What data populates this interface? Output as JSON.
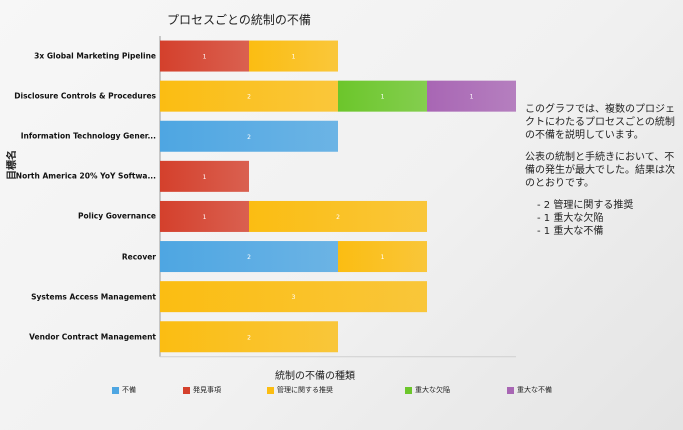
{
  "chart_data": {
    "type": "bar",
    "orientation": "horizontal",
    "stacked": true,
    "title": "プロセスごとの統制の不備",
    "xlabel": "統制の不備の種類",
    "ylabel": "目標名",
    "categories": [
      "3x Global Marketing Pipeline",
      "Disclosure Controls & Procedures",
      "Information Technology Gener...",
      "North America 20% YoY Softwa...",
      "Policy Governance",
      "Recover",
      "Systems Access Management",
      "Vendor Contract Management"
    ],
    "series": [
      {
        "name": "不備",
        "color": "#4ea6e2",
        "values": [
          0,
          0,
          2,
          0,
          0,
          2,
          0,
          0
        ]
      },
      {
        "name": "発見事項",
        "color": "#d4402c",
        "values": [
          1,
          0,
          0,
          1,
          1,
          0,
          0,
          0
        ]
      },
      {
        "name": "管理に関する推奨",
        "color": "#fbbd12",
        "values": [
          1,
          2,
          0,
          0,
          2,
          1,
          3,
          2
        ]
      },
      {
        "name": "重大な欠陥",
        "color": "#6cc62b",
        "values": [
          0,
          1,
          0,
          0,
          0,
          0,
          0,
          0
        ]
      },
      {
        "name": "重大な不備",
        "color": "#a866b4",
        "values": [
          0,
          1,
          0,
          0,
          0,
          0,
          0,
          0
        ]
      }
    ],
    "xlim": [
      0,
      4
    ],
    "legend_position": "bottom"
  },
  "note": {
    "intro": "このグラフでは、複数のプロジェクトにわたるプロセスごとの統制の不備を説明しています。",
    "summary": "公表の統制と手続きにおいて、不備の発生が最大でした。結果は次のとおりです。",
    "items": [
      "- 2 管理に関する推奨",
      "- 1 重大な欠陥",
      "- 1 重大な不備"
    ]
  }
}
